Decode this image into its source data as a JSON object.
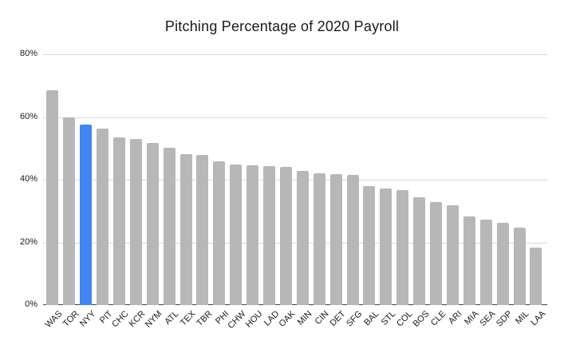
{
  "chart_data": {
    "type": "bar",
    "title": "Pitching Percentage of 2020 Payroll",
    "xlabel": "",
    "ylabel": "",
    "categories": [
      "WAS",
      "TOR",
      "NYY",
      "PIT",
      "CHC",
      "KCR",
      "NYM",
      "ATL",
      "TEX",
      "TBR",
      "PHI",
      "CHW",
      "HOU",
      "LAD",
      "OAK",
      "MIN",
      "CIN",
      "DET",
      "SFG",
      "BAL",
      "STL",
      "COL",
      "BOS",
      "CLE",
      "ARI",
      "MIA",
      "SEA",
      "SDP",
      "MIL",
      "LAA"
    ],
    "values": [
      68.5,
      59.9,
      57.7,
      56.3,
      53.6,
      53.0,
      51.8,
      50.2,
      48.1,
      47.8,
      45.9,
      44.9,
      44.5,
      44.4,
      44.1,
      42.8,
      42.1,
      41.8,
      41.5,
      37.9,
      37.3,
      36.8,
      34.4,
      32.9,
      31.9,
      28.2,
      27.3,
      26.2,
      24.7,
      18.3
    ],
    "ylim": [
      0,
      80
    ],
    "yticks": [
      0,
      20,
      40,
      60,
      80
    ],
    "ytick_labels": [
      "0%",
      "20%",
      "40%",
      "60%",
      "80%"
    ],
    "grid": true,
    "legend_position": "none",
    "x_label_rotation_deg": -45,
    "colors": {
      "bar": "#b7b7b7",
      "highlight": "#4285f4",
      "gridline": "#d9d9d9",
      "axis": "#424242",
      "text": "#1a1a1a",
      "background": "#ffffff"
    },
    "highlight": {
      "category": "NYY",
      "index": 2
    }
  }
}
